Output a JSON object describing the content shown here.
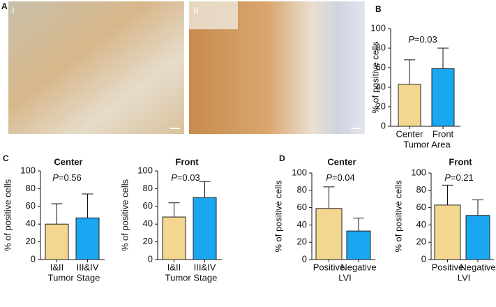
{
  "panel_labels": [
    "A",
    "B",
    "C",
    "D"
  ],
  "images": [
    {
      "label": "I"
    },
    {
      "label": "II"
    }
  ],
  "chart_data": [
    {
      "type": "bar",
      "categories": [
        "Center",
        "Front"
      ],
      "values": [
        43,
        59
      ],
      "errors": [
        25,
        21
      ],
      "colors": [
        "#f3d68f",
        "#1aa7f2"
      ],
      "ylim": [
        0,
        100
      ],
      "yticks": [
        0,
        20,
        40,
        60,
        80,
        100
      ],
      "ylabel": "% of positive cells",
      "xlabel": "Tumor Area",
      "annotation": "P=0.03"
    },
    {
      "type": "bar",
      "title": "Center",
      "categories": [
        "I&II",
        "III&IV"
      ],
      "values": [
        40,
        47
      ],
      "errors": [
        23,
        27
      ],
      "colors": [
        "#f3d68f",
        "#1aa7f2"
      ],
      "ylim": [
        0,
        100
      ],
      "yticks": [
        0,
        20,
        40,
        60,
        80,
        100
      ],
      "ylabel": "% of positive cells",
      "xlabel": "Tumor Stage",
      "annotation": "P=0.56"
    },
    {
      "type": "bar",
      "title": "Front",
      "categories": [
        "I&II",
        "III&IV"
      ],
      "values": [
        48,
        70
      ],
      "errors": [
        16,
        18
      ],
      "colors": [
        "#f3d68f",
        "#1aa7f2"
      ],
      "ylim": [
        0,
        100
      ],
      "yticks": [
        0,
        20,
        40,
        60,
        80,
        100
      ],
      "ylabel": "% of positive cells",
      "xlabel": "Tumor Stage",
      "annotation": "P=0.03"
    },
    {
      "type": "bar",
      "title": "Center",
      "categories": [
        "Positive",
        "Negative"
      ],
      "values": [
        59,
        33
      ],
      "errors": [
        25,
        15
      ],
      "colors": [
        "#f3d68f",
        "#1aa7f2"
      ],
      "ylim": [
        0,
        100
      ],
      "yticks": [
        0,
        20,
        40,
        60,
        80,
        100
      ],
      "ylabel": "% of positive cells",
      "xlabel": "LVI",
      "annotation": "P=0.04"
    },
    {
      "type": "bar",
      "title": "Front",
      "categories": [
        "Positive",
        "Negative"
      ],
      "values": [
        63,
        51
      ],
      "errors": [
        23,
        18
      ],
      "colors": [
        "#f3d68f",
        "#1aa7f2"
      ],
      "ylim": [
        0,
        100
      ],
      "yticks": [
        0,
        20,
        40,
        60,
        80,
        100
      ],
      "ylabel": "% of positive cells",
      "xlabel": "LVI",
      "annotation": "P=0.21"
    }
  ]
}
